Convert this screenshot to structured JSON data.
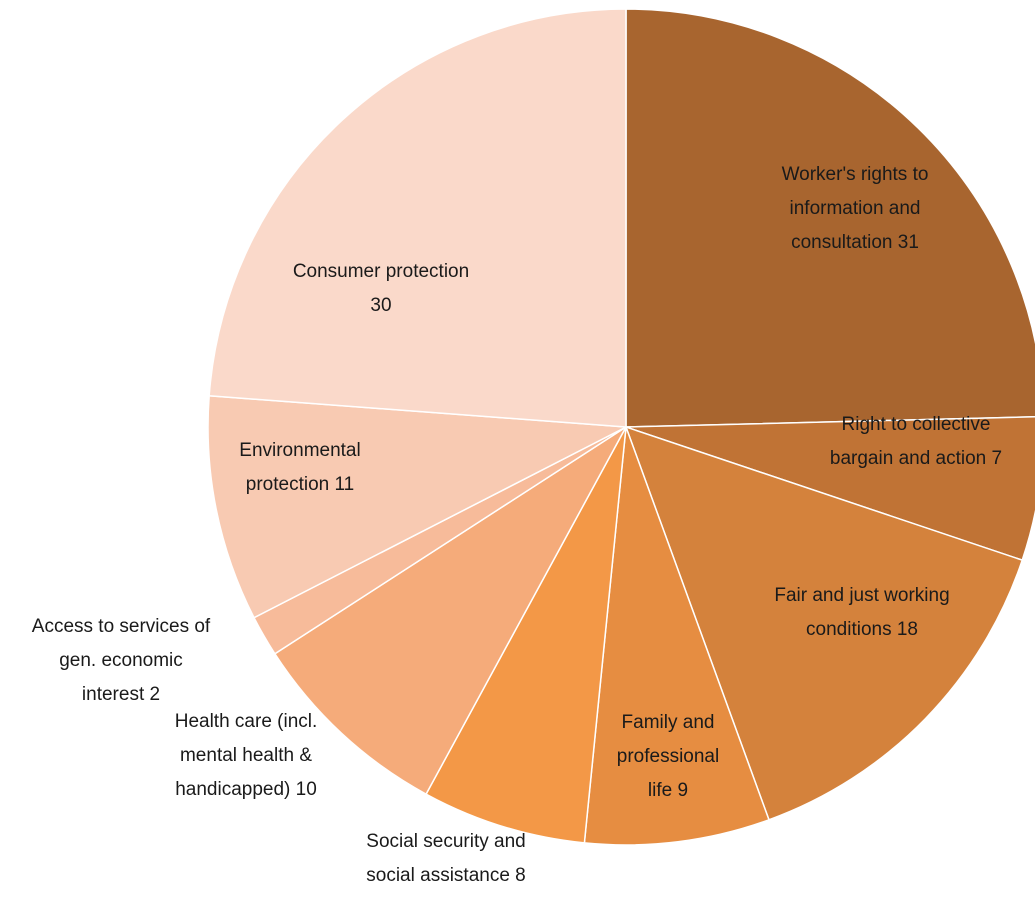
{
  "chart_data": {
    "type": "pie",
    "title": "",
    "start": "12 o'clock",
    "direction": "clockwise",
    "slices": [
      {
        "label": "Worker's rights to information and consultation",
        "value": 31,
        "color": "#A8652F",
        "label_lines": [
          "Worker's rights to",
          "information and",
          "consultation 31"
        ]
      },
      {
        "label": "Right to collective bargain and action",
        "value": 7,
        "color": "#C07335",
        "label_lines": [
          "Right to collective",
          "bargain and action 7"
        ]
      },
      {
        "label": "Fair and just working conditions",
        "value": 18,
        "color": "#D4823C",
        "label_lines": [
          "Fair and just working",
          "conditions 18"
        ]
      },
      {
        "label": "Family and professional life",
        "value": 9,
        "color": "#E68D41",
        "label_lines": [
          "Family and",
          "professional",
          "life 9"
        ]
      },
      {
        "label": "Social security and social assistance",
        "value": 8,
        "color": "#F39847",
        "label_lines": [
          "Social security and",
          "social assistance 8"
        ]
      },
      {
        "label": "Health care (incl. mental health & handicapped)",
        "value": 10,
        "color": "#F5AB7A",
        "label_lines": [
          "Health care (incl.",
          "mental health &",
          "handicapped) 10"
        ]
      },
      {
        "label": "Access to services of gen. economic interest",
        "value": 2,
        "color": "#F7BB9A",
        "label_lines": [
          "Access to services of",
          "gen. economic",
          "interest 2"
        ]
      },
      {
        "label": "Environmental protection",
        "value": 11,
        "color": "#F8CAB2",
        "label_lines": [
          "Environmental",
          "protection 11"
        ]
      },
      {
        "label": "Consumer protection",
        "value": 30,
        "color": "#FAD9CA",
        "label_lines": [
          "Consumer protection",
          "30"
        ]
      }
    ]
  }
}
